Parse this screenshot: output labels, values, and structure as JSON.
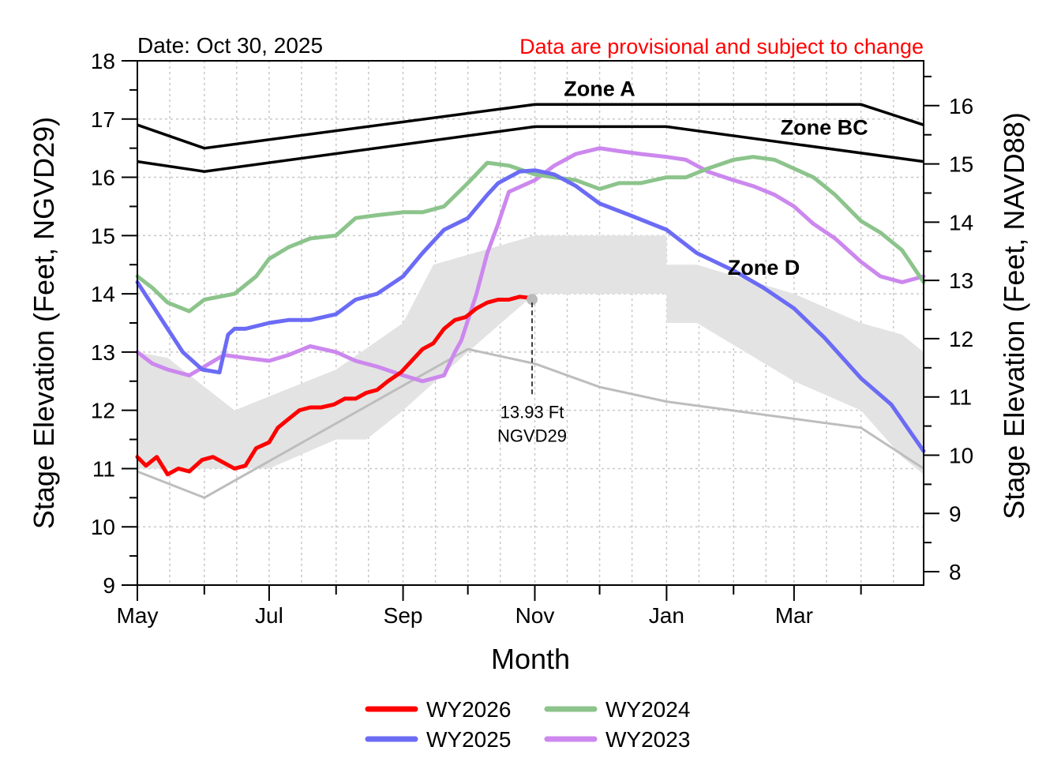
{
  "header": {
    "date": "Date: Oct 30, 2025",
    "disclaimer": "Data are provisional and subject to change"
  },
  "colors": {
    "disclaimer": "#ff0000",
    "wy2026": "#ff0000",
    "wy2025": "#6b6bf5",
    "wy2024": "#8cc48c",
    "wy2023": "#cc88ee",
    "zone_lines": "#000000",
    "zone_d_band": "#e3e3e3",
    "gray_line": "#bdbdbd",
    "grid": "#c8c8c8"
  },
  "chart_data": {
    "type": "line",
    "xlabel": "Month",
    "ylabel_left": "Stage Elevation (Feet, NGVD29)",
    "ylabel_right": "Stage Elevation (Feet, NAVD88)",
    "x_axis": {
      "range": [
        "May 1",
        "Apr 30"
      ],
      "tick_labels": [
        "May",
        "Jul",
        "Sep",
        "Nov",
        "Jan",
        "Mar"
      ],
      "tick_dates": [
        "May 1",
        "Jul 1",
        "Sep 1",
        "Nov 1",
        "Jan 1",
        "Mar 1"
      ],
      "minor_tick_dates": [
        "Jun 1",
        "Aug 1",
        "Oct 1",
        "Dec 1",
        "Feb 1",
        "Apr 1"
      ]
    },
    "ylim_left": [
      9,
      18
    ],
    "yticks_left": [
      9,
      10,
      11,
      12,
      13,
      14,
      15,
      16,
      17,
      18
    ],
    "yticks_right": [
      8,
      9,
      10,
      11,
      12,
      13,
      14,
      15,
      16
    ],
    "ylim_right": [
      7.77,
      16.77
    ],
    "grid": true,
    "legend": {
      "placement": "bottom",
      "entries": [
        "WY2026",
        "WY2024",
        "WY2025",
        "WY2023"
      ]
    },
    "zones": [
      {
        "name": "Zone A",
        "x": [
          "May 1",
          "Jun 1",
          "Nov 1",
          "Jan 1",
          "Apr 1",
          "Apr 30"
        ],
        "y": [
          16.9,
          16.5,
          17.25,
          17.25,
          17.25,
          16.9
        ]
      },
      {
        "name": "Zone BC",
        "x": [
          "May 1",
          "Jun 1",
          "Nov 1",
          "Jan 1",
          "Apr 30"
        ],
        "y": [
          16.27,
          16.1,
          16.87,
          16.87,
          16.27
        ]
      },
      {
        "name": "Zone D",
        "label_at": [
          "Feb 15",
          14.33
        ]
      }
    ],
    "zone_d_band": {
      "x": [
        "May 1",
        "May 15",
        "Jun 15",
        "Aug 1",
        "Sep 1",
        "Sep 15",
        "Nov 1",
        "Jan 1",
        "Jan 1",
        "Jan 15",
        "Mar 1",
        "Apr 1",
        "Apr 20",
        "Apr 30",
        "Apr 30",
        "Apr 20",
        "Apr 1",
        "Mar 1",
        "Jan 15",
        "Jan 1",
        "Jan 1",
        "Nov 1",
        "Oct 1",
        "Sep 1",
        "Aug 15",
        "Aug 1",
        "Jul 1",
        "Jun 1",
        "May 1"
      ],
      "y": [
        13.0,
        12.9,
        12.0,
        12.7,
        13.5,
        14.5,
        15.0,
        15.0,
        14.5,
        14.5,
        14.0,
        13.5,
        13.3,
        13.0,
        10.9,
        11.2,
        12.0,
        12.5,
        13.5,
        13.5,
        14.0,
        14.0,
        13.0,
        12.0,
        11.5,
        11.5,
        11.0,
        11.0,
        11.0
      ]
    },
    "series": [
      {
        "name": "WY2026",
        "x": [
          "May 1",
          "May 5",
          "May 10",
          "May 15",
          "May 20",
          "May 25",
          "May 31",
          "Jun 5",
          "Jun 10",
          "Jun 15",
          "Jun 20",
          "Jun 25",
          "Jul 1",
          "Jul 5",
          "Jul 10",
          "Jul 15",
          "Jul 20",
          "Jul 25",
          "Jul 31",
          "Aug 5",
          "Aug 10",
          "Aug 15",
          "Aug 20",
          "Aug 25",
          "Aug 31",
          "Sep 5",
          "Sep 10",
          "Sep 15",
          "Sep 20",
          "Sep 25",
          "Sep 30",
          "Oct 5",
          "Oct 10",
          "Oct 15",
          "Oct 20",
          "Oct 25",
          "Oct 30"
        ],
        "y": [
          11.2,
          11.05,
          11.2,
          10.9,
          11.0,
          10.95,
          11.15,
          11.2,
          11.1,
          11.0,
          11.05,
          11.35,
          11.45,
          11.7,
          11.85,
          12.0,
          12.05,
          12.05,
          12.1,
          12.2,
          12.2,
          12.3,
          12.35,
          12.5,
          12.65,
          12.85,
          13.05,
          13.15,
          13.4,
          13.55,
          13.6,
          13.75,
          13.85,
          13.9,
          13.9,
          13.95,
          13.93
        ]
      },
      {
        "name": "WY2025",
        "x": [
          "May 1",
          "May 8",
          "May 15",
          "May 22",
          "May 31",
          "Jun 8",
          "Jun 12",
          "Jun 15",
          "Jun 20",
          "Jul 1",
          "Jul 10",
          "Jul 20",
          "Aug 1",
          "Aug 10",
          "Aug 20",
          "Sep 1",
          "Sep 10",
          "Sep 20",
          "Oct 1",
          "Oct 10",
          "Oct 15",
          "Oct 25",
          "Nov 1",
          "Nov 10",
          "Nov 20",
          "Dec 1",
          "Dec 15",
          "Jan 1",
          "Jan 15",
          "Feb 1",
          "Feb 15",
          "Mar 1",
          "Mar 15",
          "Apr 1",
          "Apr 15",
          "Apr 30"
        ],
        "y": [
          14.2,
          13.8,
          13.4,
          13.0,
          12.7,
          12.65,
          13.3,
          13.4,
          13.4,
          13.5,
          13.55,
          13.55,
          13.65,
          13.9,
          14.0,
          14.3,
          14.7,
          15.1,
          15.3,
          15.7,
          15.9,
          16.1,
          16.12,
          16.05,
          15.85,
          15.55,
          15.35,
          15.1,
          14.7,
          14.4,
          14.1,
          13.75,
          13.25,
          12.55,
          12.1,
          11.3
        ]
      },
      {
        "name": "WY2024",
        "x": [
          "May 1",
          "May 8",
          "May 15",
          "May 25",
          "Jun 1",
          "Jun 15",
          "Jun 25",
          "Jul 1",
          "Jul 10",
          "Jul 20",
          "Aug 1",
          "Aug 10",
          "Aug 20",
          "Sep 1",
          "Sep 10",
          "Sep 20",
          "Oct 1",
          "Oct 10",
          "Oct 20",
          "Nov 1",
          "Nov 10",
          "Nov 20",
          "Dec 1",
          "Dec 10",
          "Dec 20",
          "Jan 1",
          "Jan 10",
          "Jan 20",
          "Feb 1",
          "Feb 10",
          "Feb 20",
          "Mar 1",
          "Mar 10",
          "Mar 20",
          "Apr 1",
          "Apr 10",
          "Apr 20",
          "Apr 30"
        ],
        "y": [
          14.3,
          14.1,
          13.85,
          13.7,
          13.9,
          14.0,
          14.3,
          14.6,
          14.8,
          14.95,
          15.0,
          15.3,
          15.35,
          15.4,
          15.4,
          15.5,
          15.9,
          16.25,
          16.2,
          16.05,
          16.0,
          15.95,
          15.8,
          15.9,
          15.9,
          16.0,
          16.0,
          16.15,
          16.3,
          16.35,
          16.3,
          16.15,
          16.0,
          15.7,
          15.25,
          15.05,
          14.75,
          14.2
        ]
      },
      {
        "name": "WY2023",
        "x": [
          "May 1",
          "May 8",
          "May 15",
          "May 25",
          "Jun 1",
          "Jun 10",
          "Jun 20",
          "Jul 1",
          "Jul 10",
          "Jul 20",
          "Aug 1",
          "Aug 10",
          "Aug 20",
          "Sep 1",
          "Sep 10",
          "Sep 20",
          "Sep 25",
          "Sep 28",
          "Oct 5",
          "Oct 10",
          "Oct 15",
          "Oct 20",
          "Nov 1",
          "Nov 10",
          "Nov 20",
          "Dec 1",
          "Dec 10",
          "Dec 20",
          "Jan 1",
          "Jan 10",
          "Jan 20",
          "Feb 1",
          "Feb 10",
          "Feb 20",
          "Mar 1",
          "Mar 10",
          "Mar 20",
          "Apr 1",
          "Apr 10",
          "Apr 20",
          "Apr 30"
        ],
        "y": [
          13.0,
          12.8,
          12.7,
          12.6,
          12.75,
          12.95,
          12.9,
          12.85,
          12.95,
          13.1,
          13.0,
          12.85,
          12.75,
          12.6,
          12.5,
          12.6,
          13.0,
          13.2,
          14.0,
          14.7,
          15.2,
          15.75,
          15.95,
          16.2,
          16.4,
          16.5,
          16.45,
          16.4,
          16.35,
          16.3,
          16.1,
          15.95,
          15.85,
          15.7,
          15.5,
          15.2,
          14.95,
          14.55,
          14.3,
          14.2,
          14.3
        ]
      }
    ],
    "gray_reference_line": {
      "x": [
        "May 1",
        "Jun 1",
        "Oct 1",
        "Nov 1",
        "Dec 1",
        "Jan 1",
        "Apr 1",
        "Apr 30"
      ],
      "y": [
        10.95,
        10.5,
        13.05,
        12.8,
        12.4,
        12.15,
        11.7,
        11.0
      ]
    },
    "annotations": [
      {
        "text_line1": "13.93 Ft",
        "text_line2": "NGVD29",
        "x": "Oct 30",
        "y": 13.93
      }
    ]
  }
}
